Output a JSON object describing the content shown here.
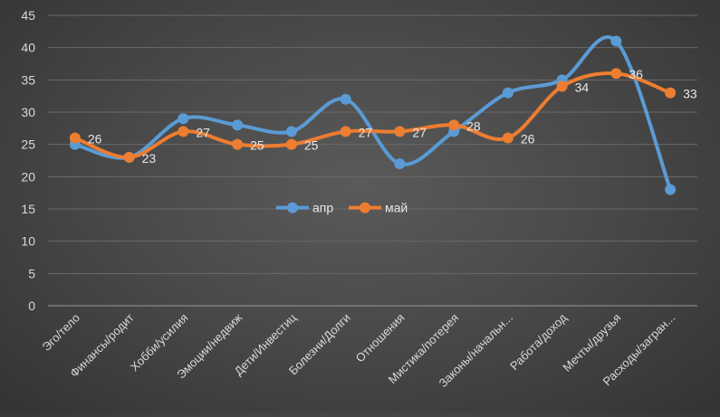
{
  "chart_data": {
    "type": "line",
    "smooth": true,
    "categories": [
      "Эго/тело",
      "Финансы/родит",
      "Хобби/усилия",
      "Эмоции/недвиж",
      "Дети/Инвестиц",
      "Болезни/Долги",
      "Отношения",
      "Мистика/потерея",
      "Законы/начальн...",
      "Работа/доход",
      "Мечты/друзья",
      "Расходы/загран..."
    ],
    "series": [
      {
        "name": "апр",
        "color": "#5b9bd5",
        "values": [
          25,
          23,
          29,
          28,
          27,
          32,
          22,
          27,
          33,
          35,
          41,
          18
        ],
        "data_labels": false
      },
      {
        "name": "май",
        "color": "#ed7d31",
        "values": [
          26,
          23,
          27,
          25,
          25,
          27,
          27,
          28,
          26,
          34,
          36,
          33
        ],
        "data_labels": true
      }
    ],
    "ylim": [
      0,
      45
    ],
    "yticks": [
      0,
      5,
      10,
      15,
      20,
      25,
      30,
      35,
      40,
      45
    ],
    "grid": true,
    "legend": "center",
    "title": "",
    "xlabel": "",
    "ylabel": ""
  }
}
